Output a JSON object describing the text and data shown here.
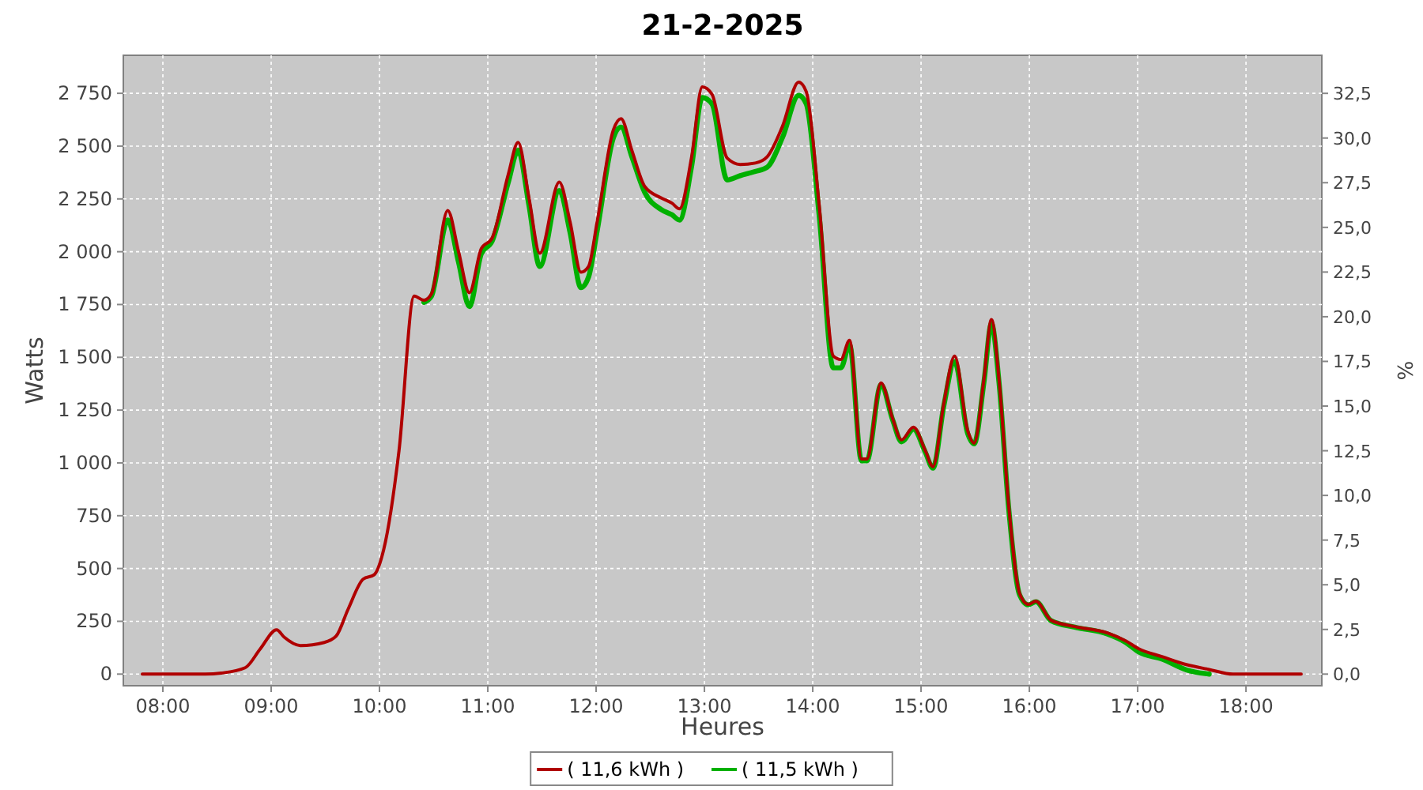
{
  "chart_data": {
    "type": "line",
    "title": "21-2-2025",
    "xlabel": "Heures",
    "ylabel": "Watts",
    "y2label": "%",
    "xlim": [
      7.635,
      18.7
    ],
    "ylim": [
      -55,
      2930
    ],
    "y2lim": [
      -0.65,
      34.63
    ],
    "xticks": [
      {
        "value": 8,
        "label": "08:00"
      },
      {
        "value": 9,
        "label": "09:00"
      },
      {
        "value": 10,
        "label": "10:00"
      },
      {
        "value": 11,
        "label": "11:00"
      },
      {
        "value": 12,
        "label": "12:00"
      },
      {
        "value": 13,
        "label": "13:00"
      },
      {
        "value": 14,
        "label": "14:00"
      },
      {
        "value": 15,
        "label": "15:00"
      },
      {
        "value": 16,
        "label": "16:00"
      },
      {
        "value": 17,
        "label": "17:00"
      },
      {
        "value": 18,
        "label": "18:00"
      }
    ],
    "yticks": [
      0,
      250,
      500,
      750,
      {
        "value": 1000,
        "label": "1 000"
      },
      {
        "value": 1250,
        "label": "1 250"
      },
      {
        "value": 1500,
        "label": "1 500"
      },
      {
        "value": 1750,
        "label": "1 750"
      },
      {
        "value": 2000,
        "label": "2 000"
      },
      {
        "value": 2250,
        "label": "2 250"
      },
      {
        "value": 2500,
        "label": "2 500"
      },
      {
        "value": 2750,
        "label": "2 750"
      }
    ],
    "y2ticks": [
      {
        "value": 0,
        "label": "0,0"
      },
      {
        "value": 2.5,
        "label": "2,5"
      },
      {
        "value": 5,
        "label": "5,0"
      },
      {
        "value": 7.5,
        "label": "7,5"
      },
      {
        "value": 10,
        "label": "10,0"
      },
      {
        "value": 12.5,
        "label": "12,5"
      },
      {
        "value": 15,
        "label": "15,0"
      },
      {
        "value": 17.5,
        "label": "17,5"
      },
      {
        "value": 20,
        "label": "20,0"
      },
      {
        "value": 22.5,
        "label": "22,5"
      },
      {
        "value": 25,
        "label": "25,0"
      },
      {
        "value": 27.5,
        "label": "27,5"
      },
      {
        "value": 30,
        "label": "30,0"
      },
      {
        "value": 32.5,
        "label": "32,5"
      }
    ],
    "x": [
      7.81,
      8.39,
      8.54,
      8.76,
      8.9,
      9.05,
      9.12,
      9.27,
      9.49,
      9.6,
      9.71,
      9.85,
      9.95,
      10.04,
      10.18,
      10.32,
      10.41,
      10.48,
      10.63,
      10.73,
      10.83,
      10.94,
      11.04,
      11.19,
      11.28,
      11.38,
      11.48,
      11.66,
      11.76,
      11.86,
      11.93,
      12.01,
      12.16,
      12.23,
      12.33,
      12.45,
      12.6,
      12.7,
      12.77,
      12.88,
      12.98,
      13.07,
      13.21,
      13.33,
      13.47,
      13.58,
      13.72,
      13.87,
      13.94,
      14.06,
      14.19,
      14.26,
      14.34,
      14.45,
      14.5,
      14.63,
      14.74,
      14.82,
      14.93,
      15.04,
      15.11,
      15.21,
      15.31,
      15.43,
      15.49,
      15.58,
      15.65,
      15.72,
      15.81,
      15.91,
      15.99,
      16.06,
      16.2,
      16.42,
      16.72,
      16.89,
      17.01,
      17.23,
      17.45,
      17.66,
      17.88,
      18.51
    ],
    "legend": "bottom",
    "grid": true,
    "line_style": "solid",
    "series": [
      {
        "name": "( 11,6 kWh )",
        "color": "#b00000",
        "values": [
          0,
          0,
          5,
          30,
          120,
          210,
          175,
          135,
          150,
          180,
          307,
          450,
          470,
          592,
          1057,
          1790,
          1770,
          1800,
          2195,
          2000,
          1806,
          2015,
          2065,
          2368,
          2518,
          2255,
          1993,
          2330,
          2140,
          1903,
          1930,
          2143,
          2578,
          2630,
          2480,
          2308,
          2255,
          2230,
          2203,
          2443,
          2780,
          2745,
          2443,
          2413,
          2420,
          2450,
          2593,
          2803,
          2758,
          2218,
          1506,
          1490,
          1581,
          1019,
          1019,
          1379,
          1206,
          1109,
          1169,
          1057,
          982,
          1281,
          1506,
          1154,
          1094,
          1394,
          1679,
          1394,
          794,
          382,
          330,
          345,
          255,
          225,
          195,
          157,
          120,
          82,
          45,
          22,
          0,
          0
        ]
      },
      {
        "name": "( 11,5 kWh )",
        "color": "#00b000",
        "values": [
          null,
          null,
          null,
          null,
          null,
          null,
          null,
          null,
          null,
          null,
          null,
          null,
          null,
          null,
          null,
          null,
          1760,
          1790,
          2150,
          1950,
          1740,
          1990,
          2050,
          2330,
          2480,
          2220,
          1930,
          2290,
          2090,
          1830,
          1880,
          2100,
          2540,
          2590,
          2450,
          2280,
          2200,
          2175,
          2150,
          2400,
          2730,
          2700,
          2340,
          2360,
          2380,
          2400,
          2540,
          2740,
          2700,
          2170,
          1450,
          1450,
          1560,
          1010,
          1010,
          1370,
          1200,
          1100,
          1160,
          1050,
          975,
          1270,
          1480,
          1140,
          1090,
          1380,
          1660,
          1380,
          780,
          375,
          328,
          343,
          253,
          222,
          190,
          150,
          105,
          70,
          20,
          0,
          null,
          null
        ]
      }
    ]
  }
}
